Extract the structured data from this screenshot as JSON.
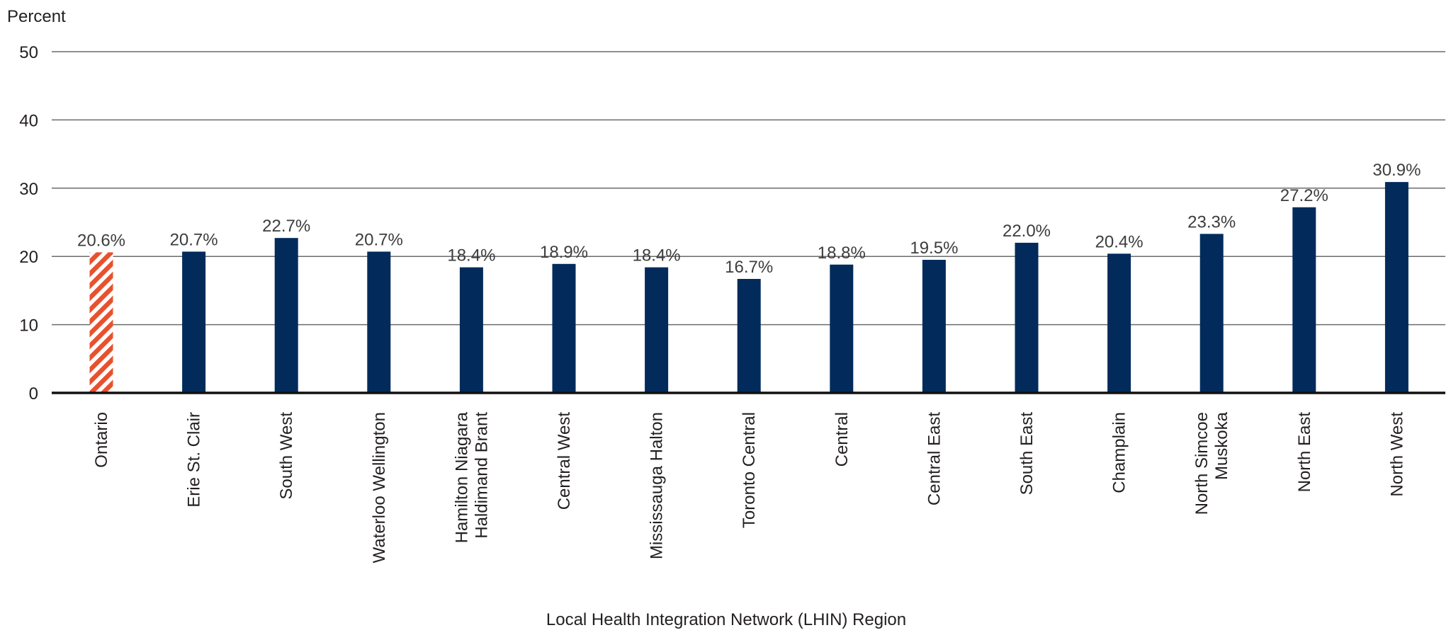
{
  "chart_data": {
    "type": "bar",
    "ylabel": "Percent",
    "xlabel": "Local Health Integration Network (LHIN) Region",
    "ylim": [
      0,
      50
    ],
    "yticks": [
      0,
      10,
      20,
      30,
      40,
      50
    ],
    "grid": true,
    "categories": [
      "Ontario",
      "Erie St. Clair",
      "South West",
      "Waterloo Wellington",
      "Hamilton Niagara Haldimand Brant",
      "Central West",
      "Mississauga Halton",
      "Toronto Central",
      "Central",
      "Central East",
      "South East",
      "Champlain",
      "North Simcoe Muskoka",
      "North East",
      "North West"
    ],
    "category_lines": [
      [
        "Ontario"
      ],
      [
        "Erie St. Clair"
      ],
      [
        "South West"
      ],
      [
        "Waterloo Wellington"
      ],
      [
        "Hamilton Niagara",
        "Haldimand Brant"
      ],
      [
        "Central West"
      ],
      [
        "Mississauga Halton"
      ],
      [
        "Toronto Central"
      ],
      [
        "Central"
      ],
      [
        "Central East"
      ],
      [
        "South East"
      ],
      [
        "Champlain"
      ],
      [
        "North Simcoe",
        "Muskoka"
      ],
      [
        "North East"
      ],
      [
        "North West"
      ]
    ],
    "values": [
      20.6,
      20.7,
      22.7,
      20.7,
      18.4,
      18.9,
      18.4,
      16.7,
      18.8,
      19.5,
      22.0,
      20.4,
      23.3,
      27.2,
      30.9
    ],
    "value_labels": [
      "20.6%",
      "20.7%",
      "22.7%",
      "20.7%",
      "18.4%",
      "18.9%",
      "18.4%",
      "16.7%",
      "18.8%",
      "19.5%",
      "22.0%",
      "20.4%",
      "23.3%",
      "27.2%",
      "30.9%"
    ],
    "highlight_index": 0,
    "colors": {
      "bar": "#022b5c",
      "highlight": "#e8512e"
    }
  }
}
